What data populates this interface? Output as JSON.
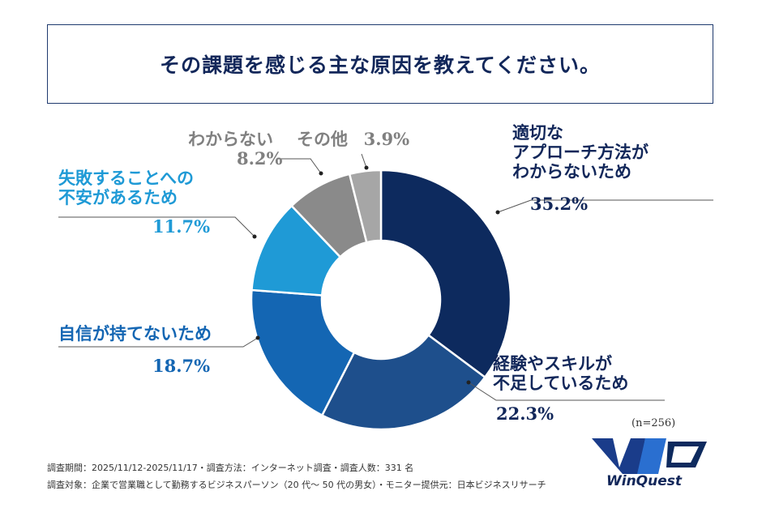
{
  "header": {
    "title": "その課題を感じる主な原因を教えてください。"
  },
  "chart_data": {
    "type": "pie",
    "title": "その課題を感じる主な原因を教えてください。",
    "categories": [
      "適切なアプローチ方法がわからないため",
      "経験やスキルが不足しているため",
      "自信が持てないため",
      "失敗することへの不安があるため",
      "わからない",
      "その他"
    ],
    "values": [
      35.2,
      22.3,
      18.7,
      11.7,
      8.2,
      3.9
    ],
    "colors": [
      "#0d2a5e",
      "#1e4f8c",
      "#1466b3",
      "#1f9ad6",
      "#8a8a8a",
      "#a6a6a6"
    ],
    "unit": "%",
    "n": "(n=256)"
  },
  "labels": {
    "s0": {
      "lines": [
        "適切な",
        "アプローチ方法が",
        "わからないため"
      ],
      "pct": "35.2%"
    },
    "s1": {
      "lines": [
        "経験やスキルが",
        "不足しているため"
      ],
      "pct": "22.3%"
    },
    "s2": {
      "lines": [
        "自信が持てないため"
      ],
      "pct": "18.7%"
    },
    "s3": {
      "lines": [
        "失敗することへの",
        "不安があるため"
      ],
      "pct": "11.7%"
    },
    "s4": {
      "lines": [
        "わからない"
      ],
      "pct": "8.2%"
    },
    "s5": {
      "lines": [
        "その他"
      ],
      "pct": "3.9%"
    }
  },
  "footer": {
    "line1": "調査期間：2025/11/12-2025/11/17・調査方法：インターネット調査・調査人数：331 名",
    "line2": "調査対象：企業で営業職として勤務するビジネスパーソン（20 代～ 50 代の男女）・モニター提供元：日本ビジネスリサーチ"
  },
  "logo": {
    "text": "WinQuest",
    "mark": "WQ"
  }
}
